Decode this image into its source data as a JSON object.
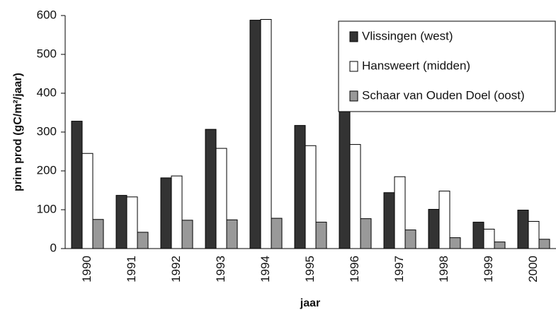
{
  "chart_data": {
    "type": "bar",
    "x_label": "jaar",
    "y_label": "prim prod (gC/m²/jaar)",
    "categories": [
      "1990",
      "1991",
      "1992",
      "1993",
      "1994",
      "1995",
      "1996",
      "1997",
      "1998",
      "1999",
      "2000"
    ],
    "series": [
      {
        "name": "Vlissingen (west)",
        "color": "#333333",
        "values": [
          328,
          137,
          182,
          307,
          588,
          317,
          373,
          144,
          101,
          68,
          99
        ]
      },
      {
        "name": "Hansweert (midden)",
        "color": "#ffffff",
        "values": [
          245,
          133,
          187,
          258,
          590,
          265,
          268,
          185,
          148,
          50,
          70
        ]
      },
      {
        "name": "Schaar van Ouden Doel (oost)",
        "color": "#999999",
        "values": [
          75,
          42,
          73,
          74,
          78,
          68,
          77,
          48,
          28,
          17,
          24
        ]
      }
    ],
    "ylim": [
      0,
      600
    ],
    "yticks": [
      0,
      100,
      200,
      300,
      400,
      500,
      600
    ],
    "grid": false,
    "legend": "upper right"
  }
}
